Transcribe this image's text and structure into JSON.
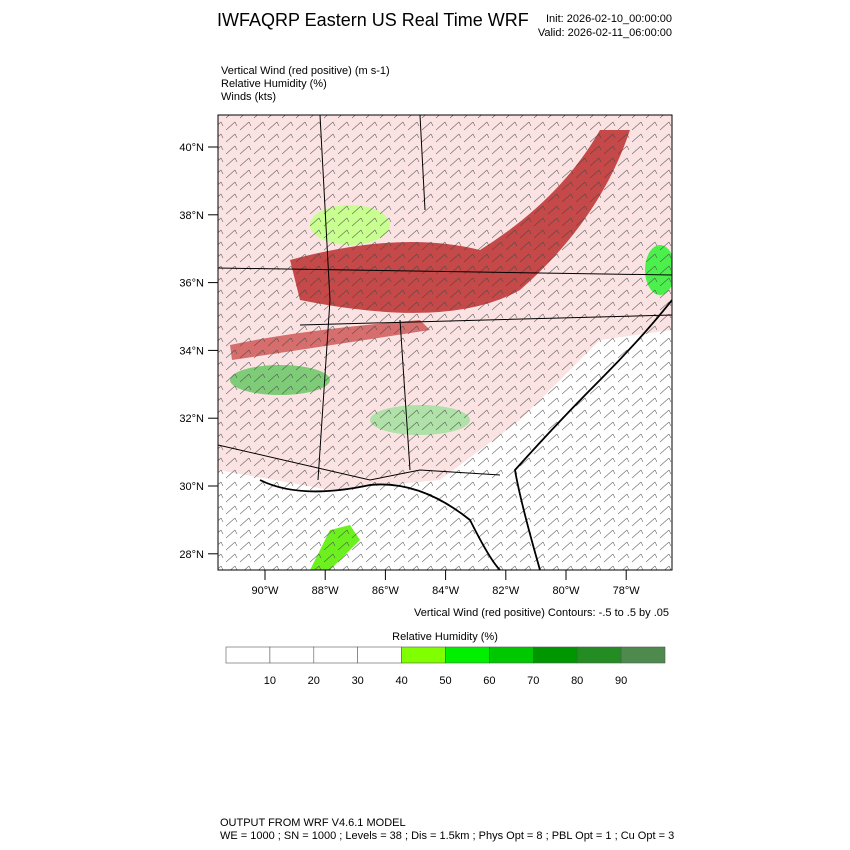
{
  "header": {
    "title": "IWFAQRP Eastern US Real Time WRF",
    "init": "Init: 2026-02-10_00:00:00",
    "valid": "Valid: 2026-02-11_06:00:00"
  },
  "fields": [
    "Vertical Wind (red positive)   (m s-1)",
    "Relative Humidity   (%)",
    "Winds   (kts)"
  ],
  "map": {
    "lat_labels": [
      "40°N",
      "38°N",
      "36°N",
      "34°N",
      "32°N",
      "30°N",
      "28°N"
    ],
    "lon_labels": [
      "90°W",
      "88°W",
      "86°W",
      "84°W",
      "82°W",
      "80°W",
      "78°W"
    ],
    "contour_note": "Vertical Wind (red positive) Contours: -.5 to .5 by .05"
  },
  "colorbar": {
    "title": "Relative Humidity  (%)",
    "colors": [
      "#ffffff",
      "#ffffff",
      "#ffffff",
      "#ffffff",
      "#80ff00",
      "#00f000",
      "#00c800",
      "#009600",
      "#238c23",
      "#4e8a4e"
    ],
    "labels": [
      "10",
      "20",
      "30",
      "40",
      "50",
      "60",
      "70",
      "80",
      "90"
    ]
  },
  "footer": [
    "OUTPUT FROM WRF V4.6.1 MODEL",
    "WE = 1000 ; SN = 1000 ; Levels = 38 ; Dis = 1.5km ; Phys Opt = 8 ; PBL Opt = 1 ; Cu Opt = 3"
  ]
}
